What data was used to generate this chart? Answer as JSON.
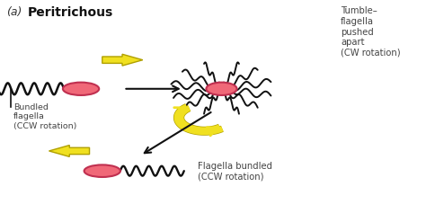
{
  "title_a": "(a)",
  "title_b": "Peritrichous",
  "bg_color": "#ffffff",
  "bacterium_color": "#f06878",
  "bacterium_edge": "#c03050",
  "yellow": "#f0e020",
  "yellow_edge": "#b0a000",
  "black": "#111111",
  "text_color": "#444444",
  "label1": "Bundled\nflagella\n(CCW rotation)",
  "label2": "Tumble–\nflagella\npushed\napart\n(CW rotation)",
  "label3": "Flagella bundled\n(CCW rotation)",
  "cell1": [
    0.19,
    0.6
  ],
  "cell2": [
    0.52,
    0.6
  ],
  "cell3": [
    0.24,
    0.23
  ]
}
